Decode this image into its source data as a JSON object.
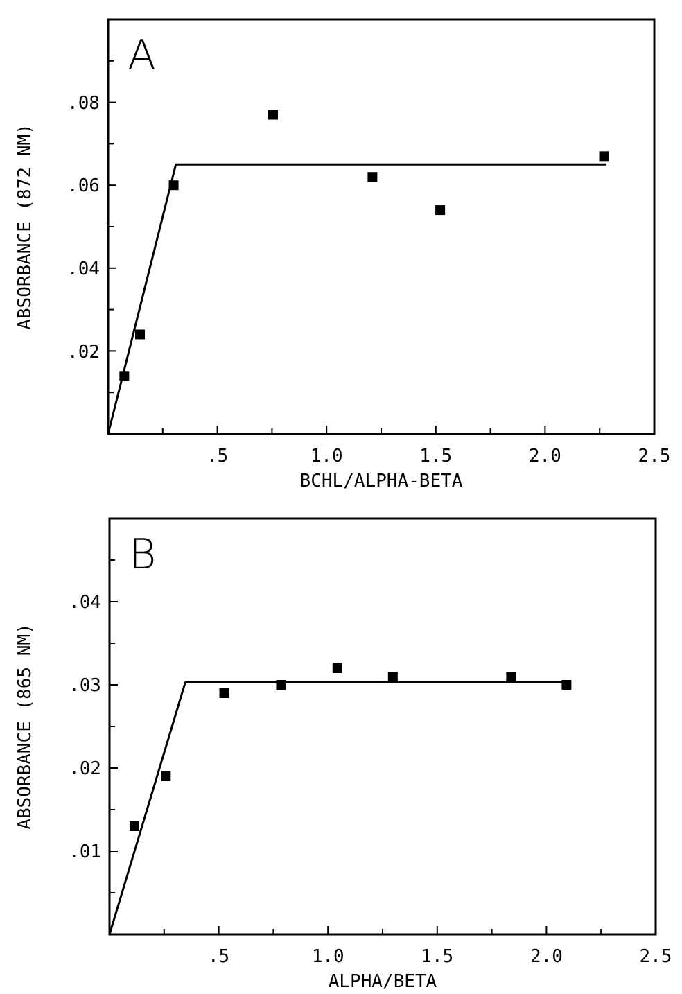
{
  "chart_data": [
    {
      "type": "scatter",
      "title": "A",
      "xlabel": "BCHL/ALPHA-BETA",
      "ylabel": "ABSORBANCE (872 NM)",
      "xlim": [
        0,
        2.5
      ],
      "ylim": [
        0,
        0.1
      ],
      "xticks": [
        {
          "value": 0.25,
          "label": null
        },
        {
          "value": 0.5,
          "label": ".5"
        },
        {
          "value": 0.75,
          "label": null
        },
        {
          "value": 1,
          "label": "1.0"
        },
        {
          "value": 1.25,
          "label": null
        },
        {
          "value": 1.5,
          "label": "1.5"
        },
        {
          "value": 1.75,
          "label": null
        },
        {
          "value": 2,
          "label": "2.0"
        },
        {
          "value": 2.25,
          "label": null
        },
        {
          "value": 2.5,
          "label": "2.5"
        }
      ],
      "yticks": [
        {
          "value": 0.01,
          "label": null
        },
        {
          "value": 0.02,
          "label": ".02"
        },
        {
          "value": 0.03,
          "label": null
        },
        {
          "value": 0.04,
          "label": ".04"
        },
        {
          "value": 0.05,
          "label": null
        },
        {
          "value": 0.06,
          "label": ".06"
        },
        {
          "value": 0.07,
          "label": null
        },
        {
          "value": 0.08,
          "label": ".08"
        },
        {
          "value": 0.09,
          "label": null
        }
      ],
      "marker": "square",
      "series": [
        {
          "color": "#000000",
          "x": [
            0.074,
            0.146,
            0.3,
            0.755,
            1.21,
            1.52,
            2.27
          ],
          "values": [
            0.014,
            0.024,
            0.06,
            0.077,
            0.062,
            0.054,
            0.067
          ]
        },
        {
          "type": "line",
          "color": "#000000",
          "marker": "none",
          "x": [
            0,
            0.31,
            2.28
          ],
          "values": [
            0,
            0.065,
            0.065
          ]
        }
      ]
    },
    {
      "type": "scatter",
      "title": "B",
      "xlabel": "ALPHA/BETA",
      "ylabel": "ABSORBANCE (865 NM)",
      "xlim": [
        0,
        2.5
      ],
      "ylim": [
        0,
        0.05
      ],
      "xticks": [
        {
          "value": 0.25,
          "label": null
        },
        {
          "value": 0.5,
          "label": ".5"
        },
        {
          "value": 0.75,
          "label": null
        },
        {
          "value": 1,
          "label": "1.0"
        },
        {
          "value": 1.25,
          "label": null
        },
        {
          "value": 1.5,
          "label": "1.5"
        },
        {
          "value": 1.75,
          "label": null
        },
        {
          "value": 2,
          "label": "2.0"
        },
        {
          "value": 2.25,
          "label": null
        },
        {
          "value": 2.5,
          "label": "2.5"
        }
      ],
      "yticks": [
        {
          "value": 0.005,
          "label": null
        },
        {
          "value": 0.01,
          "label": ".01"
        },
        {
          "value": 0.015,
          "label": null
        },
        {
          "value": 0.02,
          "label": ".02"
        },
        {
          "value": 0.025,
          "label": null
        },
        {
          "value": 0.03,
          "label": ".03"
        },
        {
          "value": 0.035,
          "label": null
        },
        {
          "value": 0.04,
          "label": ".04"
        },
        {
          "value": 0.045,
          "label": null
        }
      ],
      "marker": "square",
      "series": [
        {
          "color": "#000000",
          "x": [
            0.114,
            0.258,
            0.525,
            0.785,
            1.043,
            1.297,
            1.838,
            2.092
          ],
          "values": [
            0.013,
            0.019,
            0.029,
            0.03,
            0.032,
            0.031,
            0.031,
            0.03
          ]
        },
        {
          "type": "line",
          "color": "#000000",
          "marker": "none",
          "x": [
            0,
            0.347,
            2.11
          ],
          "values": [
            0,
            0.0303,
            0.0303
          ]
        }
      ]
    }
  ]
}
